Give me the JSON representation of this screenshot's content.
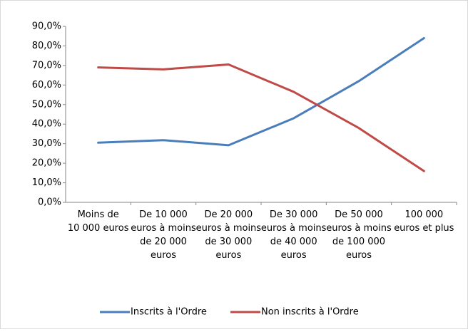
{
  "chart_data": {
    "type": "line",
    "categories": [
      "Moins de 10 000 euros",
      "De 10 000 euros à moins de 20 000 euros",
      "De 20 000 euros à moins de 30 000 euros",
      "De 30 000 euros à moins de 40 000 euros",
      "De 50 000 euros à moins de 100 000 euros",
      "100 000 euros et plus"
    ],
    "series": [
      {
        "name": "Inscrits à l'Ordre",
        "color": "#4a7ebb",
        "values": [
          30.5,
          31.8,
          29.2,
          43.0,
          62.0,
          84.0
        ]
      },
      {
        "name": "Non inscrits à l'Ordre",
        "color": "#be4b48",
        "values": [
          69.0,
          68.0,
          70.5,
          56.5,
          38.0,
          16.0
        ]
      }
    ],
    "ylim": [
      0,
      90
    ],
    "yticks": [
      {
        "value": 0,
        "label": "0,0%"
      },
      {
        "value": 10,
        "label": "10,0%"
      },
      {
        "value": 20,
        "label": "20,0%"
      },
      {
        "value": 30,
        "label": "30,0%"
      },
      {
        "value": 40,
        "label": "40,0%"
      },
      {
        "value": 50,
        "label": "50,0%"
      },
      {
        "value": 60,
        "label": "60,0%"
      },
      {
        "value": 70,
        "label": "70,0%"
      },
      {
        "value": 80,
        "label": "80,0%"
      },
      {
        "value": 90,
        "label": "90,0%"
      }
    ],
    "grid": false,
    "legend": "bottom"
  }
}
